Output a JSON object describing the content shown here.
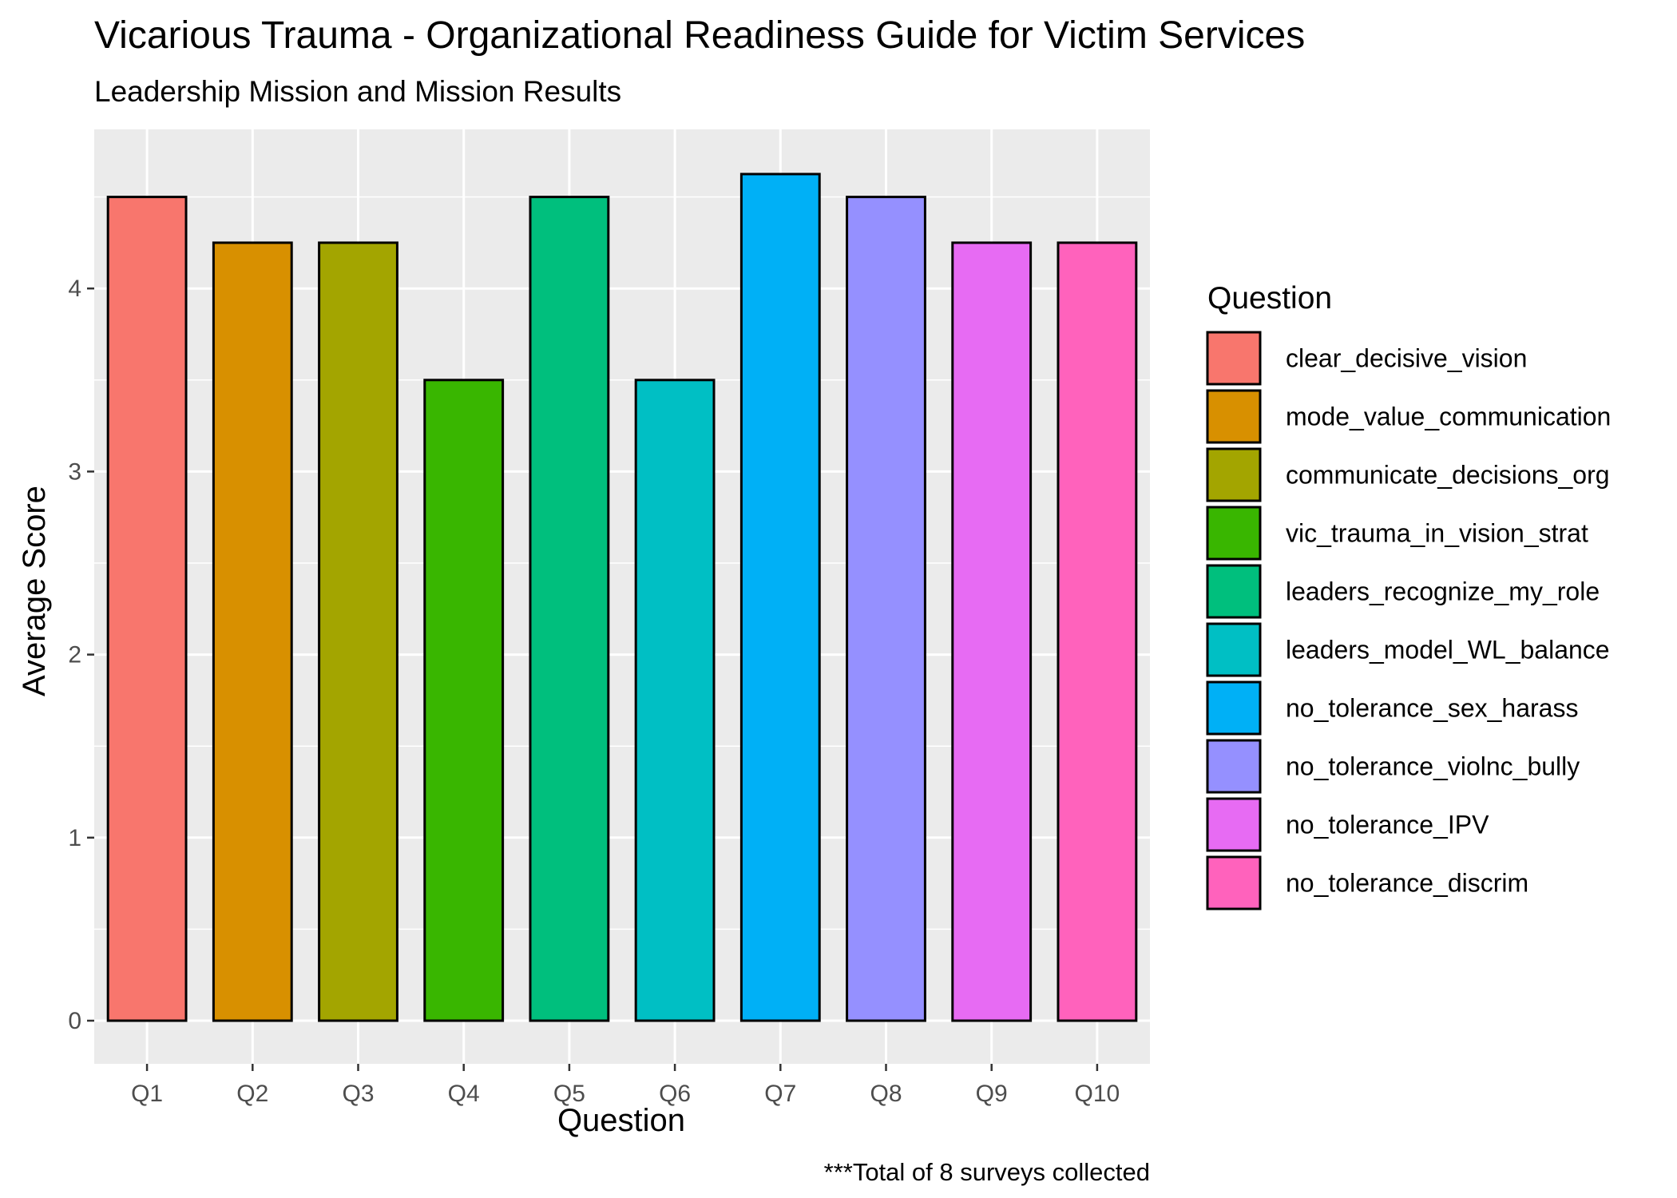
{
  "chart_data": {
    "type": "bar",
    "title": "Vicarious Trauma - Organizational Readiness Guide for Victim Services",
    "subtitle": "Leadership Mission and Mission Results",
    "xlabel": "Question",
    "ylabel": "Average Score",
    "caption": "***Total of 8 surveys collected",
    "categories": [
      "Q1",
      "Q2",
      "Q3",
      "Q4",
      "Q5",
      "Q6",
      "Q7",
      "Q8",
      "Q9",
      "Q10"
    ],
    "values": [
      4.5,
      4.25,
      4.25,
      3.5,
      4.5,
      3.5,
      4.625,
      4.5,
      4.25,
      4.25
    ],
    "yticks": [
      0,
      1,
      2,
      3,
      4
    ],
    "ylim": [
      0,
      4.625
    ],
    "grid": true,
    "legend": {
      "title": "Question",
      "placement": "right",
      "entries": [
        {
          "label": "clear_decisive_vision",
          "color": "#F8766D"
        },
        {
          "label": "mode_value_communication",
          "color": "#D89000"
        },
        {
          "label": "communicate_decisions_org",
          "color": "#A3A500"
        },
        {
          "label": "vic_trauma_in_vision_strat",
          "color": "#39B600"
        },
        {
          "label": "leaders_recognize_my_role",
          "color": "#00BF7D"
        },
        {
          "label": "leaders_model_WL_balance",
          "color": "#00BFC4"
        },
        {
          "label": "no_tolerance_sex_harass",
          "color": "#00B0F6"
        },
        {
          "label": "no_tolerance_violnc_bully",
          "color": "#9590FF"
        },
        {
          "label": "no_tolerance_IPV",
          "color": "#E76BF3"
        },
        {
          "label": "no_tolerance_discrim",
          "color": "#FF62BC"
        }
      ]
    },
    "colors": {
      "panel_background": "#EBEBEB",
      "grid_line": "#FFFFFF",
      "bar_outline": "#000000"
    }
  }
}
